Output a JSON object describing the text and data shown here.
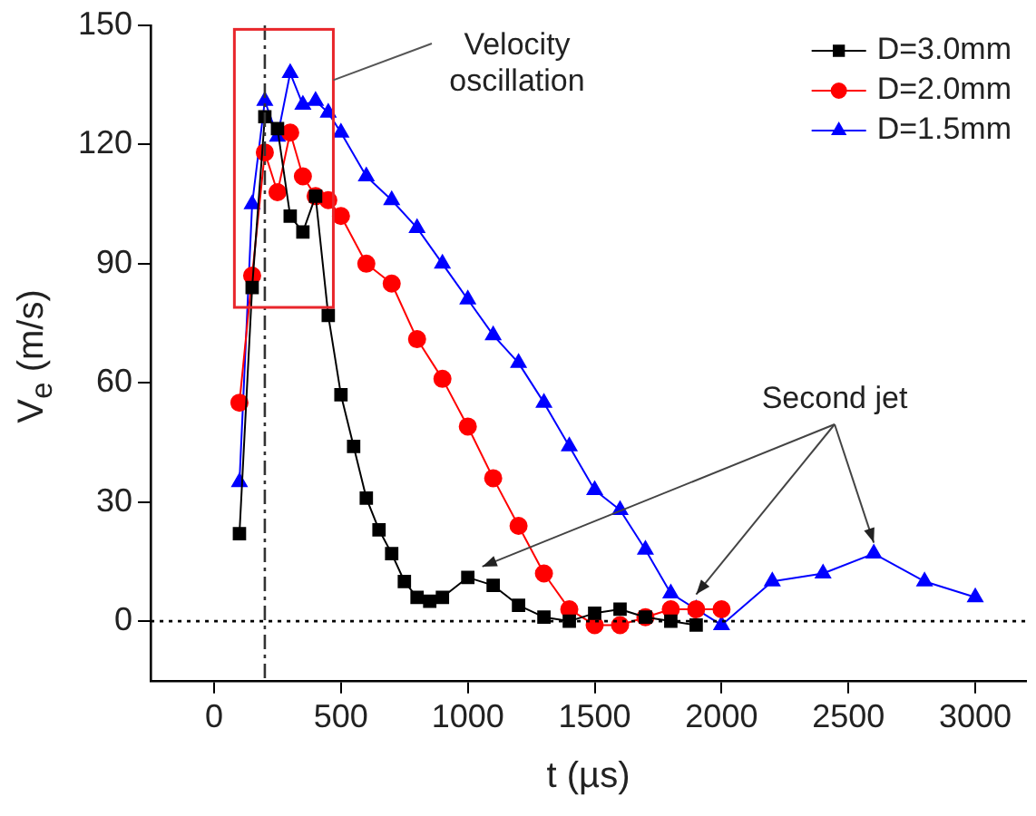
{
  "chart_data": {
    "type": "line",
    "xlabel": "t (µs)",
    "ylabel": "V$_{e}$ (m/s)",
    "xlim": [
      -250,
      3200
    ],
    "xticks": [
      0,
      500,
      1000,
      1500,
      2000,
      2500,
      3000
    ],
    "ylim": [
      -15,
      150
    ],
    "yticks": [
      0,
      30,
      60,
      90,
      120,
      150
    ],
    "grid": false,
    "legend": "top right",
    "line_style": "solid",
    "series": [
      {
        "name": "D=3.0mm",
        "color": "#000000",
        "marker": "square",
        "x": [
          100,
          150,
          200,
          250,
          300,
          350,
          400,
          450,
          500,
          550,
          600,
          650,
          700,
          750,
          800,
          850,
          900,
          1000,
          1100,
          1200,
          1300,
          1400,
          1500,
          1600,
          1700,
          1800,
          1900
        ],
        "values": [
          22,
          84,
          127,
          124,
          102,
          98,
          107,
          77,
          57,
          44,
          31,
          23,
          17,
          10,
          6,
          5,
          6,
          11,
          9,
          4,
          1,
          0,
          2,
          3,
          1,
          0,
          -1
        ]
      },
      {
        "name": "D=2.0mm",
        "color": "#ff0000",
        "marker": "circle",
        "x": [
          100,
          150,
          200,
          250,
          300,
          350,
          400,
          450,
          500,
          600,
          700,
          800,
          900,
          1000,
          1100,
          1200,
          1300,
          1400,
          1500,
          1600,
          1700,
          1800,
          1900,
          2000
        ],
        "values": [
          55,
          87,
          118,
          108,
          123,
          112,
          107,
          106,
          102,
          90,
          85,
          71,
          61,
          49,
          36,
          24,
          12,
          3,
          -1,
          -1,
          1,
          3,
          3,
          3
        ]
      },
      {
        "name": "D=1.5mm",
        "color": "#0000ff",
        "marker": "triangle",
        "x": [
          100,
          150,
          200,
          250,
          300,
          350,
          400,
          450,
          500,
          600,
          700,
          800,
          900,
          1000,
          1100,
          1200,
          1300,
          1400,
          1500,
          1600,
          1700,
          1800,
          1900,
          2000,
          2200,
          2400,
          2600,
          2800,
          3000
        ],
        "values": [
          35,
          105,
          131,
          122,
          138,
          130,
          131,
          128,
          123,
          112,
          106,
          99,
          90,
          81,
          72,
          65,
          55,
          44,
          33,
          28,
          18,
          7,
          3,
          -1,
          10,
          12,
          17,
          10,
          6
        ]
      }
    ],
    "ref_lines": [
      {
        "axis": "y",
        "value": 0,
        "color": "#000000",
        "line_style": "dotted"
      },
      {
        "axis": "x",
        "value": 200,
        "color": "#333333",
        "line_style": "dashdot"
      }
    ],
    "annotations": [
      "Velocity oscillation",
      {
        "text": "Second jet",
        "x": 2600,
        "y": 17
      }
    ]
  }
}
